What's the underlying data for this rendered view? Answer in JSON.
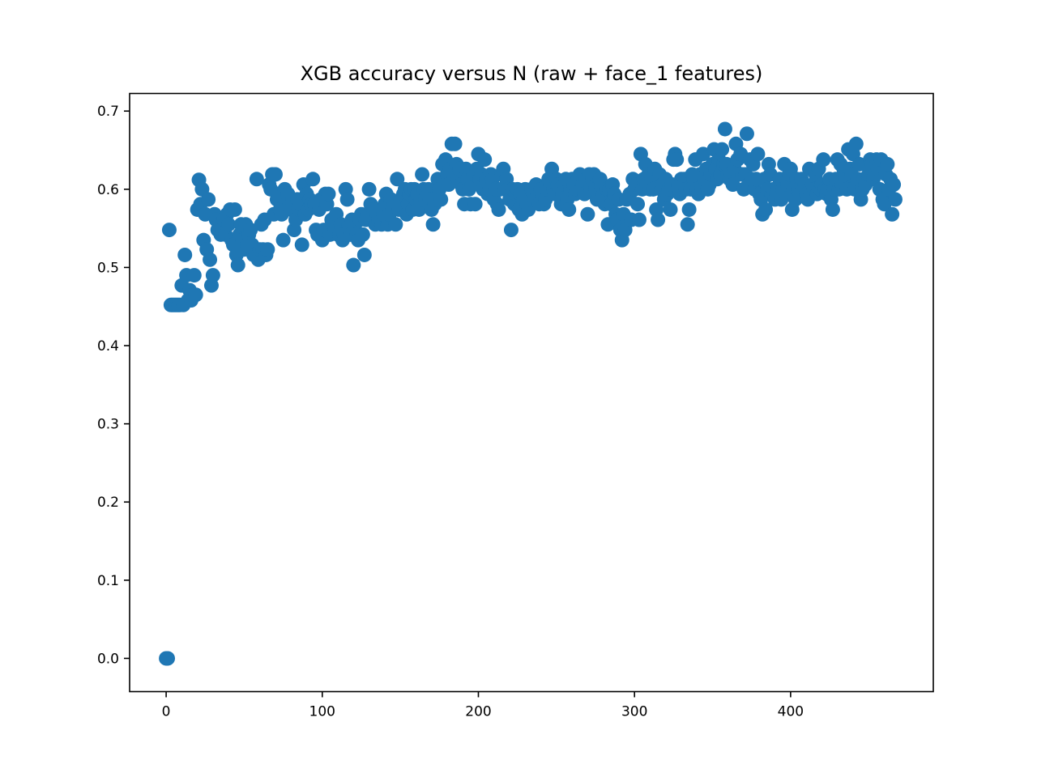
{
  "chart_data": {
    "type": "scatter",
    "title": "XGB accuracy versus N (raw + face_1 features)",
    "xlabel": "",
    "ylabel": "",
    "xlim": [
      -23.4,
      491.4
    ],
    "ylim": [
      -0.0425,
      0.7225
    ],
    "xticks": [
      0,
      100,
      200,
      300,
      400
    ],
    "xtick_labels": [
      "0",
      "100",
      "200",
      "300",
      "400"
    ],
    "yticks": [
      0.0,
      0.1,
      0.2,
      0.3,
      0.4,
      0.5,
      0.6,
      0.7
    ],
    "ytick_labels": [
      "0.0",
      "0.1",
      "0.2",
      "0.3",
      "0.4",
      "0.5",
      "0.6",
      "0.7"
    ],
    "grid": false,
    "legend": "none",
    "marker_color": "#1f77b4",
    "series": [
      {
        "x": [
          0,
          1,
          2,
          3,
          4,
          5,
          6,
          7,
          8,
          9,
          10,
          11,
          12,
          13,
          14,
          15,
          16,
          17,
          18,
          19,
          20,
          21,
          22,
          23,
          24,
          25,
          26,
          27,
          28,
          29,
          30,
          31,
          32,
          33,
          34,
          35,
          36,
          37,
          38,
          39,
          40,
          41,
          42,
          43,
          44,
          45,
          46,
          47,
          48,
          49,
          50,
          51,
          52,
          53,
          54,
          55,
          56,
          57,
          58,
          59,
          60,
          61,
          62,
          63,
          64,
          65,
          66,
          67,
          68,
          69,
          70,
          71,
          72,
          73,
          74,
          75,
          76,
          77,
          78,
          79,
          80,
          81,
          82,
          83,
          84,
          85,
          86,
          87,
          88,
          89,
          90,
          91,
          92,
          93,
          94,
          95,
          96,
          97,
          98,
          99,
          100,
          101,
          102,
          103,
          104,
          105,
          106,
          107,
          108,
          109,
          110,
          111,
          112,
          113,
          114,
          115,
          116,
          117,
          118,
          119,
          120,
          121,
          122,
          123,
          124,
          125,
          126,
          127,
          128,
          129,
          130,
          131,
          132,
          133,
          134,
          135,
          136,
          137,
          138,
          139,
          140,
          141,
          142,
          143,
          144,
          145,
          146,
          147,
          148,
          149,
          150,
          151,
          152,
          153,
          154,
          155,
          156,
          157,
          158,
          159,
          160,
          161,
          162,
          163,
          164,
          165,
          166,
          167,
          168,
          169,
          170,
          171,
          172,
          173,
          174,
          175,
          176,
          177,
          178,
          179,
          180,
          181,
          182,
          183,
          184,
          185,
          186,
          187,
          188,
          189,
          190,
          191,
          192,
          193,
          194,
          195,
          196,
          197,
          198,
          199,
          200,
          201,
          202,
          203,
          204,
          205,
          206,
          207,
          208,
          209,
          210,
          211,
          212,
          213,
          214,
          215,
          216,
          217,
          218,
          219,
          220,
          221,
          222,
          223,
          224,
          225,
          226,
          227,
          228,
          229,
          230,
          231,
          232,
          233,
          234,
          235,
          236,
          237,
          238,
          239,
          240,
          241,
          242,
          243,
          244,
          245,
          246,
          247,
          248,
          249,
          250,
          251,
          252,
          253,
          254,
          255,
          256,
          257,
          258,
          259,
          260,
          261,
          262,
          263,
          264,
          265,
          266,
          267,
          268,
          269,
          270,
          271,
          272,
          273,
          274,
          275,
          276,
          277,
          278,
          279,
          280,
          281,
          282,
          283,
          284,
          285,
          286,
          287,
          288,
          289,
          290,
          291,
          292,
          293,
          294,
          295,
          296,
          297,
          298,
          299,
          300,
          301,
          302,
          303,
          304,
          305,
          306,
          307,
          308,
          309,
          310,
          311,
          312,
          313,
          314,
          315,
          316,
          317,
          318,
          319,
          320,
          321,
          322,
          323,
          324,
          325,
          326,
          327,
          328,
          329,
          330,
          331,
          332,
          333,
          334,
          335,
          336,
          337,
          338,
          339,
          340,
          341,
          342,
          343,
          344,
          345,
          346,
          347,
          348,
          349,
          350,
          351,
          352,
          353,
          354,
          355,
          356,
          357,
          358,
          359,
          360,
          361,
          362,
          363,
          364,
          365,
          366,
          367,
          368,
          369,
          370,
          371,
          372,
          373,
          374,
          375,
          376,
          377,
          378,
          379,
          380,
          381,
          382,
          383,
          384,
          385,
          386,
          387,
          388,
          389,
          390,
          391,
          392,
          393,
          394,
          395,
          396,
          397,
          398,
          399,
          400,
          401,
          402,
          403,
          404,
          405,
          406,
          407,
          408,
          409,
          410,
          411,
          412,
          413,
          414,
          415,
          416,
          417,
          418,
          419,
          420,
          421,
          422,
          423,
          424,
          425,
          426,
          427,
          428,
          429,
          430,
          431,
          432,
          433,
          434,
          435,
          436,
          437,
          438,
          439,
          440,
          441,
          442,
          443,
          444,
          445,
          446,
          447,
          448,
          449,
          450,
          451,
          452,
          453,
          454,
          455,
          456,
          457,
          458,
          459,
          460,
          461,
          462,
          463,
          464,
          465,
          466,
          467
        ],
        "y": [
          0.0,
          0.0,
          0.548,
          0.452,
          0.452,
          0.452,
          0.452,
          0.452,
          0.452,
          0.452,
          0.477,
          0.452,
          0.516,
          0.49,
          0.458,
          0.471,
          0.458,
          0.465,
          0.49,
          0.465,
          0.574,
          0.612,
          0.581,
          0.6,
          0.535,
          0.568,
          0.523,
          0.587,
          0.51,
          0.477,
          0.49,
          0.568,
          0.561,
          0.548,
          0.555,
          0.542,
          0.548,
          0.561,
          0.542,
          0.568,
          0.555,
          0.574,
          0.535,
          0.529,
          0.574,
          0.516,
          0.503,
          0.542,
          0.555,
          0.535,
          0.523,
          0.555,
          0.529,
          0.542,
          0.548,
          0.529,
          0.516,
          0.516,
          0.613,
          0.51,
          0.523,
          0.555,
          0.523,
          0.561,
          0.516,
          0.523,
          0.606,
          0.6,
          0.619,
          0.568,
          0.619,
          0.587,
          0.594,
          0.574,
          0.568,
          0.535,
          0.6,
          0.581,
          0.594,
          0.581,
          0.574,
          0.587,
          0.548,
          0.561,
          0.587,
          0.574,
          0.581,
          0.529,
          0.606,
          0.568,
          0.594,
          0.574,
          0.587,
          0.581,
          0.613,
          0.581,
          0.548,
          0.542,
          0.574,
          0.587,
          0.535,
          0.548,
          0.594,
          0.581,
          0.594,
          0.542,
          0.561,
          0.555,
          0.548,
          0.568,
          0.542,
          0.542,
          0.555,
          0.535,
          0.542,
          0.6,
          0.587,
          0.555,
          0.542,
          0.561,
          0.503,
          0.555,
          0.542,
          0.535,
          0.561,
          0.568,
          0.542,
          0.516,
          0.561,
          0.568,
          0.6,
          0.581,
          0.568,
          0.574,
          0.555,
          0.568,
          0.561,
          0.574,
          0.555,
          0.568,
          0.581,
          0.594,
          0.555,
          0.568,
          0.587,
          0.574,
          0.581,
          0.555,
          0.613,
          0.574,
          0.587,
          0.581,
          0.594,
          0.6,
          0.568,
          0.581,
          0.594,
          0.6,
          0.574,
          0.6,
          0.587,
          0.594,
          0.574,
          0.587,
          0.619,
          0.6,
          0.587,
          0.594,
          0.6,
          0.587,
          0.574,
          0.555,
          0.581,
          0.587,
          0.613,
          0.6,
          0.587,
          0.632,
          0.613,
          0.638,
          0.619,
          0.606,
          0.626,
          0.658,
          0.619,
          0.658,
          0.632,
          0.613,
          0.626,
          0.606,
          0.6,
          0.581,
          0.626,
          0.613,
          0.6,
          0.581,
          0.606,
          0.619,
          0.581,
          0.626,
          0.645,
          0.613,
          0.619,
          0.6,
          0.638,
          0.613,
          0.594,
          0.6,
          0.619,
          0.613,
          0.587,
          0.6,
          0.581,
          0.574,
          0.6,
          0.619,
          0.626,
          0.6,
          0.613,
          0.6,
          0.587,
          0.548,
          0.6,
          0.581,
          0.594,
          0.6,
          0.574,
          0.594,
          0.568,
          0.587,
          0.6,
          0.581,
          0.574,
          0.587,
          0.6,
          0.594,
          0.587,
          0.606,
          0.594,
          0.581,
          0.6,
          0.594,
          0.581,
          0.587,
          0.6,
          0.613,
          0.606,
          0.626,
          0.6,
          0.594,
          0.613,
          0.606,
          0.6,
          0.581,
          0.594,
          0.606,
          0.613,
          0.587,
          0.574,
          0.6,
          0.613,
          0.606,
          0.594,
          0.6,
          0.613,
          0.619,
          0.6,
          0.606,
          0.594,
          0.613,
          0.568,
          0.619,
          0.6,
          0.613,
          0.619,
          0.6,
          0.587,
          0.594,
          0.613,
          0.606,
          0.594,
          0.581,
          0.6,
          0.555,
          0.6,
          0.581,
          0.606,
          0.594,
          0.568,
          0.561,
          0.587,
          0.548,
          0.535,
          0.568,
          0.548,
          0.587,
          0.561,
          0.594,
          0.561,
          0.613,
          0.6,
          0.606,
          0.581,
          0.561,
          0.645,
          0.6,
          0.613,
          0.632,
          0.606,
          0.619,
          0.6,
          0.613,
          0.6,
          0.626,
          0.574,
          0.561,
          0.619,
          0.6,
          0.606,
          0.587,
          0.613,
          0.594,
          0.6,
          0.574,
          0.606,
          0.638,
          0.645,
          0.638,
          0.606,
          0.594,
          0.613,
          0.6,
          0.613,
          0.6,
          0.555,
          0.574,
          0.6,
          0.619,
          0.613,
          0.638,
          0.6,
          0.594,
          0.619,
          0.6,
          0.645,
          0.613,
          0.626,
          0.6,
          0.606,
          0.619,
          0.632,
          0.651,
          0.626,
          0.613,
          0.638,
          0.619,
          0.651,
          0.632,
          0.677,
          0.632,
          0.619,
          0.613,
          0.619,
          0.606,
          0.626,
          0.658,
          0.638,
          0.619,
          0.645,
          0.619,
          0.6,
          0.619,
          0.671,
          0.606,
          0.638,
          0.613,
          0.632,
          0.6,
          0.613,
          0.645,
          0.594,
          0.587,
          0.568,
          0.613,
          0.574,
          0.6,
          0.632,
          0.619,
          0.594,
          0.6,
          0.587,
          0.594,
          0.6,
          0.613,
          0.587,
          0.6,
          0.632,
          0.594,
          0.606,
          0.619,
          0.626,
          0.574,
          0.6,
          0.587,
          0.613,
          0.6,
          0.594,
          0.613,
          0.6,
          0.606,
          0.594,
          0.587,
          0.626,
          0.594,
          0.606,
          0.6,
          0.619,
          0.594,
          0.626,
          0.6,
          0.606,
          0.638,
          0.6,
          0.594,
          0.6,
          0.613,
          0.587,
          0.574,
          0.6,
          0.613,
          0.638,
          0.6,
          0.632,
          0.606,
          0.626,
          0.613,
          0.6,
          0.651,
          0.626,
          0.619,
          0.645,
          0.6,
          0.658,
          0.613,
          0.632,
          0.587,
          0.6,
          0.613,
          0.606,
          0.632,
          0.619,
          0.638,
          0.632,
          0.613,
          0.619,
          0.638,
          0.626,
          0.6,
          0.638,
          0.587,
          0.581,
          0.619,
          0.632,
          0.6,
          0.613,
          0.568,
          0.606,
          0.587
        ]
      }
    ]
  }
}
